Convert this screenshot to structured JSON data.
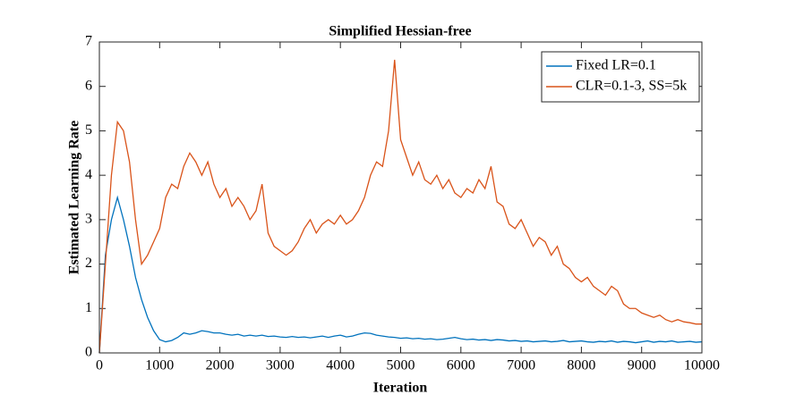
{
  "chart_data": {
    "type": "line",
    "title": "Simplified Hessian-free",
    "x_label": "Iteration",
    "y_label": "Estimated Learning Rate",
    "x": [
      0,
      100,
      200,
      300,
      400,
      500,
      600,
      700,
      800,
      900,
      1000,
      1100,
      1200,
      1300,
      1400,
      1500,
      1600,
      1700,
      1800,
      1900,
      2000,
      2100,
      2200,
      2300,
      2400,
      2500,
      2600,
      2700,
      2800,
      2900,
      3000,
      3100,
      3200,
      3300,
      3400,
      3500,
      3600,
      3700,
      3800,
      3900,
      4000,
      4100,
      4200,
      4300,
      4400,
      4500,
      4600,
      4700,
      4800,
      4900,
      5000,
      5100,
      5200,
      5300,
      5400,
      5500,
      5600,
      5700,
      5800,
      5900,
      6000,
      6100,
      6200,
      6300,
      6400,
      6500,
      6600,
      6700,
      6800,
      6900,
      7000,
      7100,
      7200,
      7300,
      7400,
      7500,
      7600,
      7700,
      7800,
      7900,
      8000,
      8100,
      8200,
      8300,
      8400,
      8500,
      8600,
      8700,
      8800,
      8900,
      9000,
      9100,
      9200,
      9300,
      9400,
      9500,
      9600,
      9700,
      9800,
      9900,
      10000
    ],
    "series": [
      {
        "name": "Fixed LR=0.1",
        "color": "#0072BD",
        "values": [
          0,
          2.2,
          3.0,
          3.5,
          3.0,
          2.4,
          1.7,
          1.2,
          0.8,
          0.5,
          0.3,
          0.25,
          0.28,
          0.35,
          0.45,
          0.42,
          0.45,
          0.5,
          0.48,
          0.45,
          0.45,
          0.42,
          0.4,
          0.42,
          0.38,
          0.4,
          0.38,
          0.4,
          0.37,
          0.38,
          0.36,
          0.35,
          0.37,
          0.35,
          0.36,
          0.34,
          0.36,
          0.38,
          0.35,
          0.38,
          0.4,
          0.36,
          0.38,
          0.42,
          0.45,
          0.44,
          0.4,
          0.38,
          0.36,
          0.35,
          0.33,
          0.34,
          0.32,
          0.33,
          0.31,
          0.32,
          0.3,
          0.31,
          0.33,
          0.35,
          0.32,
          0.3,
          0.31,
          0.29,
          0.3,
          0.28,
          0.3,
          0.29,
          0.27,
          0.28,
          0.26,
          0.27,
          0.25,
          0.26,
          0.27,
          0.25,
          0.26,
          0.28,
          0.25,
          0.26,
          0.27,
          0.25,
          0.24,
          0.26,
          0.25,
          0.27,
          0.24,
          0.26,
          0.25,
          0.23,
          0.25,
          0.27,
          0.24,
          0.26,
          0.25,
          0.27,
          0.24,
          0.25,
          0.26,
          0.24,
          0.25
        ]
      },
      {
        "name": "CLR=0.1-3, SS=5k",
        "color": "#D95319",
        "values": [
          0,
          2.0,
          4.0,
          5.2,
          5.0,
          4.3,
          3.0,
          2.0,
          2.2,
          2.5,
          2.8,
          3.5,
          3.8,
          3.7,
          4.2,
          4.5,
          4.3,
          4.0,
          4.3,
          3.8,
          3.5,
          3.7,
          3.3,
          3.5,
          3.3,
          3.0,
          3.2,
          3.8,
          2.7,
          2.4,
          2.3,
          2.2,
          2.3,
          2.5,
          2.8,
          3.0,
          2.7,
          2.9,
          3.0,
          2.9,
          3.1,
          2.9,
          3.0,
          3.2,
          3.5,
          4.0,
          4.3,
          4.2,
          5.0,
          6.6,
          4.8,
          4.4,
          4.0,
          4.3,
          3.9,
          3.8,
          4.0,
          3.7,
          3.9,
          3.6,
          3.5,
          3.7,
          3.6,
          3.9,
          3.7,
          4.2,
          3.4,
          3.3,
          2.9,
          2.8,
          3.0,
          2.7,
          2.4,
          2.6,
          2.5,
          2.2,
          2.4,
          2.0,
          1.9,
          1.7,
          1.6,
          1.7,
          1.5,
          1.4,
          1.3,
          1.5,
          1.4,
          1.1,
          1.0,
          1.0,
          0.9,
          0.85,
          0.8,
          0.85,
          0.75,
          0.7,
          0.75,
          0.7,
          0.68,
          0.65,
          0.65
        ]
      }
    ],
    "xlim": [
      0,
      10000
    ],
    "xticks": [
      0,
      1000,
      2000,
      3000,
      4000,
      5000,
      6000,
      7000,
      8000,
      9000,
      10000
    ],
    "ylim": [
      0,
      7
    ],
    "yticks": [
      0,
      1,
      2,
      3,
      4,
      5,
      6,
      7
    ],
    "legend": "upper-right"
  }
}
